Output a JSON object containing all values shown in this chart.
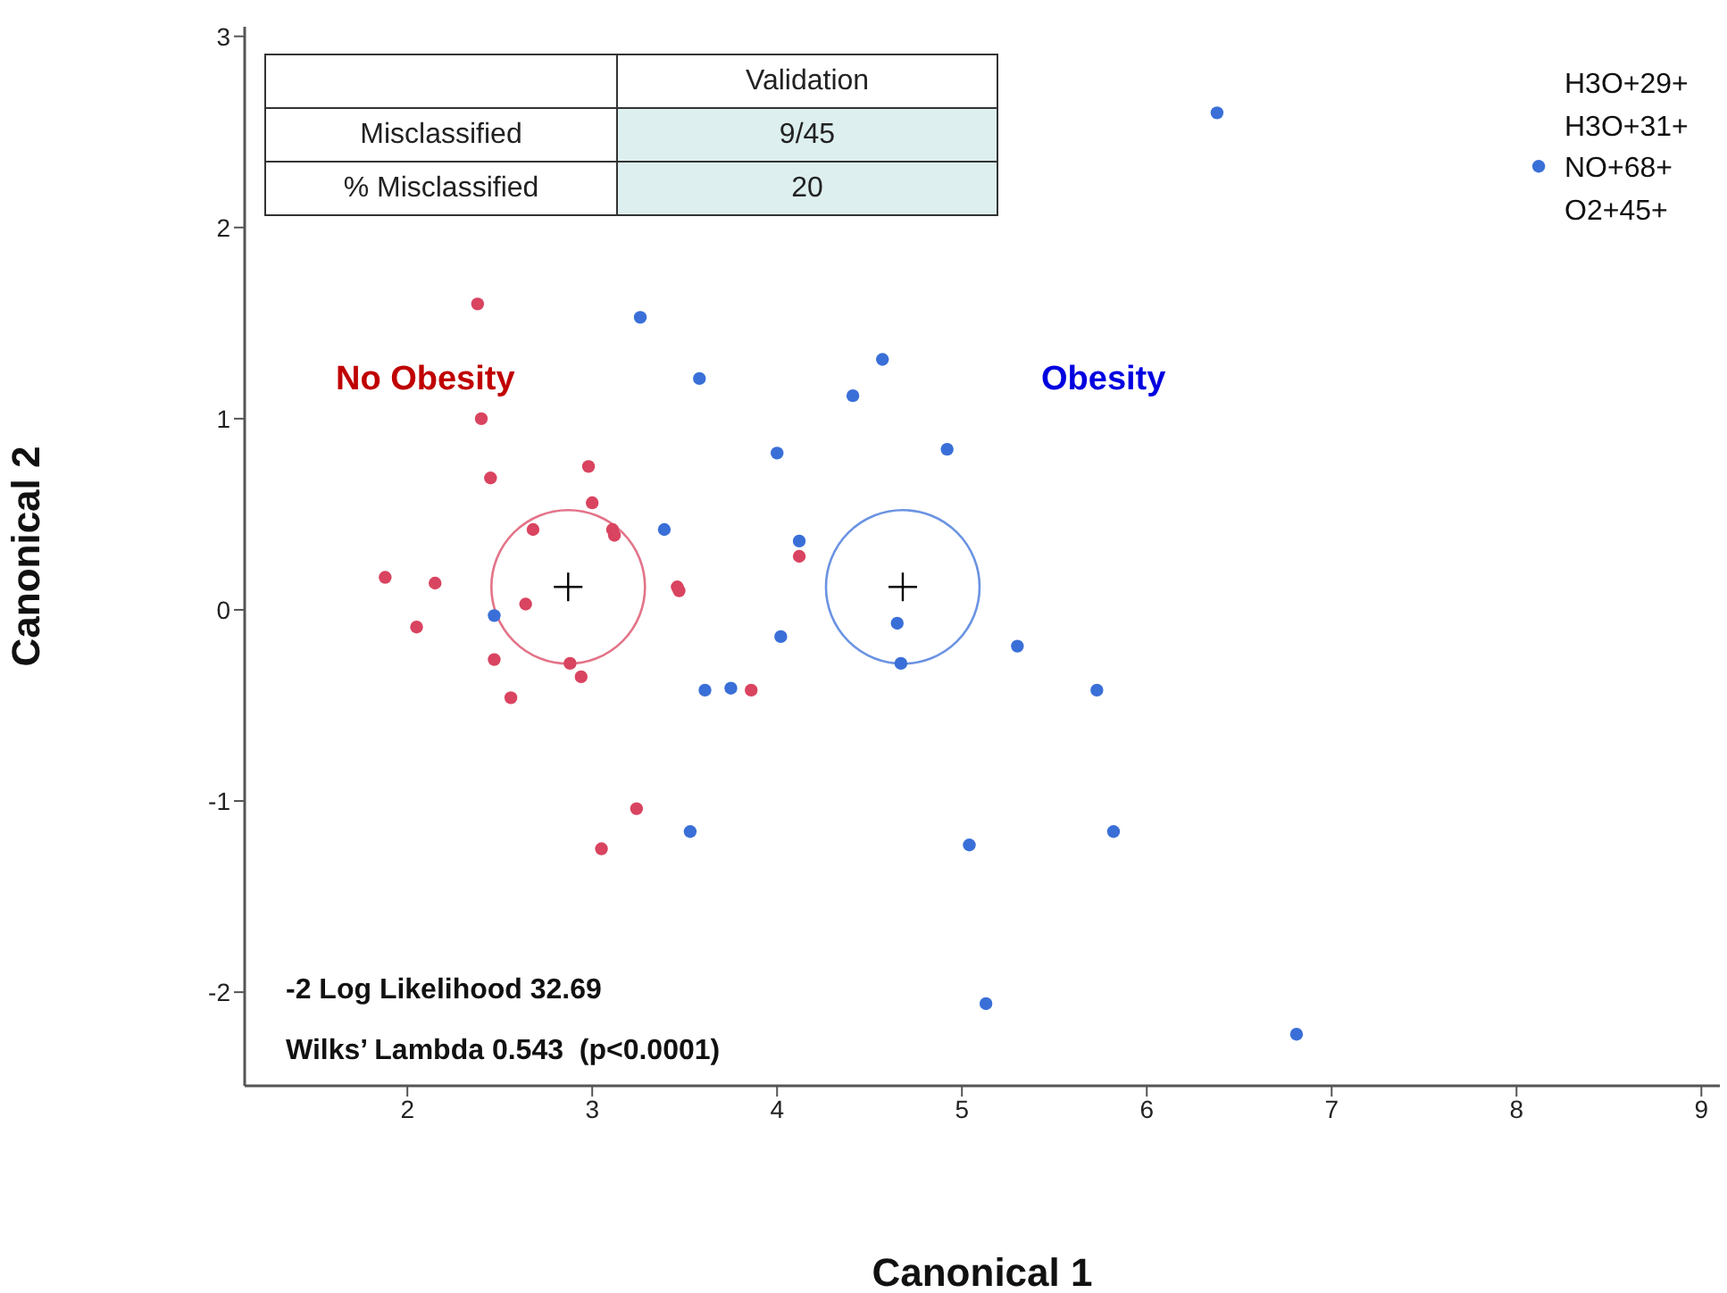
{
  "chart_data": {
    "type": "scatter",
    "xlabel": "Canonical 1",
    "ylabel": "Canonical 2",
    "xlim": [
      1.12,
      9.1
    ],
    "ylim": [
      -2.49,
      3.05
    ],
    "xticks": [
      2,
      3,
      4,
      5,
      6,
      7,
      8,
      9
    ],
    "yticks": [
      -2,
      -1,
      0,
      1,
      2,
      3
    ],
    "marker": "circle",
    "series": [
      {
        "color": "#d94460",
        "x": [
          2.38,
          2.4,
          2.45,
          2.98,
          3.0,
          2.68,
          3.11,
          3.12,
          1.88,
          2.15,
          2.05,
          2.64,
          3.46,
          3.47,
          2.47,
          2.88,
          2.94,
          2.56,
          4.12,
          3.86,
          3.24,
          3.05
        ],
        "values": [
          1.6,
          1.0,
          0.69,
          0.75,
          0.56,
          0.42,
          0.42,
          0.39,
          0.17,
          0.14,
          -0.09,
          0.03,
          0.12,
          0.1,
          -0.26,
          -0.28,
          -0.35,
          -0.46,
          0.28,
          -0.42,
          -1.04,
          -1.25
        ]
      },
      {
        "color": "#3a6fd8",
        "x": [
          3.26,
          3.58,
          4.0,
          3.39,
          4.12,
          2.47,
          4.02,
          3.61,
          3.75,
          4.57,
          4.41,
          4.92,
          4.65,
          4.67,
          5.3,
          5.73,
          6.38,
          8.12,
          5.82,
          3.53,
          5.04,
          5.13,
          6.81
        ],
        "values": [
          1.53,
          1.21,
          0.82,
          0.42,
          0.36,
          -0.03,
          -0.14,
          -0.42,
          -0.41,
          1.31,
          1.12,
          0.84,
          -0.07,
          -0.28,
          -0.19,
          -0.42,
          2.6,
          2.32,
          -1.16,
          -1.16,
          -1.23,
          -2.06,
          -2.22
        ]
      },
      {
        "color": "#000000",
        "marker": "cross",
        "x": [
          2.87,
          4.68
        ],
        "values": [
          0.12,
          0.12
        ]
      }
    ],
    "annotations": [
      "Validation",
      "Misclassified",
      "9/45",
      "% Misclassified",
      "20",
      "No Obesity",
      "Obesity",
      "H3O+29+",
      "H3O+31+",
      "NO+68+",
      "O2+45+",
      "-2 Log Likelihood 32.69",
      "Wilks’ Lambda 0.543  (p<0.0001)"
    ]
  }
}
